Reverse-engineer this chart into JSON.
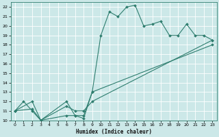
{
  "title": "",
  "xlabel": "Humidex (Indice chaleur)",
  "bg_color": "#cce8e8",
  "grid_color": "#ffffff",
  "line_color": "#2e7d6e",
  "xlim": [
    -0.5,
    23.5
  ],
  "ylim": [
    10,
    22.5
  ],
  "xticks": [
    0,
    1,
    2,
    3,
    4,
    5,
    6,
    7,
    8,
    9,
    10,
    11,
    12,
    13,
    14,
    15,
    16,
    17,
    18,
    19,
    20,
    21,
    22,
    23
  ],
  "yticks": [
    10,
    11,
    12,
    13,
    14,
    15,
    16,
    17,
    18,
    19,
    20,
    21,
    22
  ],
  "series": [
    {
      "x": [
        0,
        1,
        2,
        3,
        6,
        7,
        8,
        9,
        10,
        11,
        12,
        13,
        14,
        15,
        16,
        17,
        18,
        19,
        20,
        21,
        22,
        23
      ],
      "y": [
        11,
        12,
        11,
        10,
        12,
        10.5,
        10.5,
        13,
        19,
        21.5,
        21,
        22,
        22.2,
        20,
        20.2,
        20.5,
        19,
        19,
        20.2,
        19,
        19,
        18.5
      ]
    },
    {
      "x": [
        0,
        2,
        3,
        6,
        7,
        8,
        9,
        23
      ],
      "y": [
        11,
        12,
        10,
        11.5,
        11,
        11,
        12,
        18.5
      ]
    },
    {
      "x": [
        0,
        2,
        3,
        6,
        7,
        8,
        9,
        23
      ],
      "y": [
        11,
        11.2,
        10,
        10.5,
        10.5,
        10.2,
        13,
        18
      ]
    }
  ]
}
